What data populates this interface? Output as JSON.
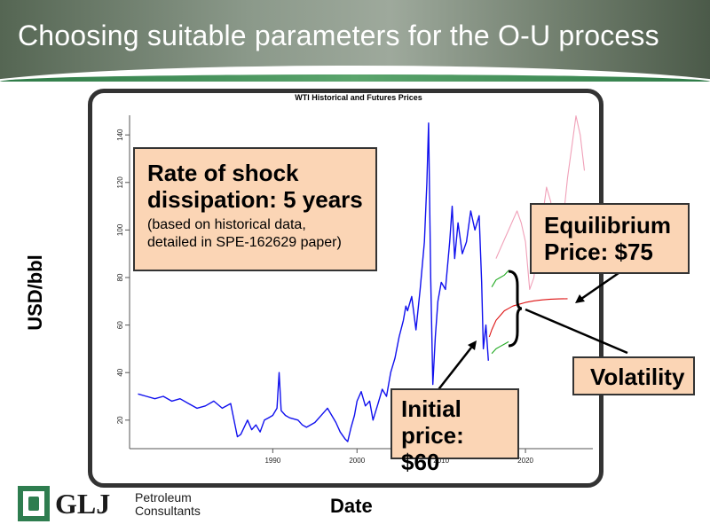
{
  "slide": {
    "title": "Choosing suitable parameters for the O-U process"
  },
  "chart_data": {
    "type": "line",
    "title": "WTI Historical and Futures Prices",
    "xlabel": "Date",
    "ylabel": "USD/bbl",
    "xlim": [
      1973,
      2028
    ],
    "ylim": [
      8,
      152
    ],
    "xticks": [
      1990,
      2000,
      2010,
      2020
    ],
    "yticks": [
      20,
      40,
      60,
      80,
      100,
      120,
      140
    ],
    "grid": false,
    "series": [
      {
        "color": "#1010ee",
        "x": [
          1974.0,
          1975.0,
          1976.0,
          1977.0,
          1978.0,
          1979.0,
          1980.0,
          1981.0,
          1982.0,
          1983.0,
          1984.0,
          1985.0,
          1985.8,
          1986.2,
          1986.6,
          1987.0,
          1987.5,
          1988.0,
          1988.5,
          1989.0,
          1989.5,
          1990.0,
          1990.5,
          1990.75,
          1991.0,
          1991.5,
          1992.0,
          1993.0,
          1993.5,
          1994.0,
          1995.0,
          1996.0,
          1996.5,
          1997.0,
          1997.5,
          1998.0,
          1998.6,
          1998.9,
          1999.3,
          1999.7,
          2000.0,
          2000.5,
          2001.0,
          2001.5,
          2001.9,
          2002.5,
          2003.0,
          2003.5,
          2004.0,
          2004.5,
          2005.0,
          2005.5,
          2005.8,
          2006.0,
          2006.5,
          2007.0,
          2007.5,
          2008.0,
          2008.3,
          2008.5,
          2008.75,
          2009.0,
          2009.3,
          2009.6,
          2010.0,
          2010.5,
          2011.0,
          2011.3,
          2011.6,
          2012.0,
          2012.5,
          2013.0,
          2013.5,
          2014.0,
          2014.5,
          2014.8,
          2015.0,
          2015.3,
          2015.6
        ],
        "y": [
          31,
          30,
          29,
          30,
          28,
          29,
          27,
          25,
          26,
          28,
          25,
          27,
          13,
          14,
          17,
          20,
          16,
          18,
          15,
          20,
          21,
          22,
          25,
          40,
          24,
          22,
          21,
          20,
          18,
          17,
          19,
          23,
          25,
          22,
          19,
          15,
          12,
          11,
          17,
          22,
          28,
          32,
          26,
          28,
          20,
          27,
          33,
          30,
          40,
          46,
          55,
          62,
          68,
          66,
          72,
          58,
          75,
          95,
          120,
          145,
          80,
          35,
          55,
          70,
          78,
          75,
          95,
          110,
          88,
          103,
          90,
          95,
          108,
          100,
          106,
          78,
          50,
          60,
          45
        ]
      },
      {
        "color": "#dd1111",
        "x": [
          2015.7,
          2016.0,
          2016.5,
          2017.0,
          2017.5,
          2018.0,
          2018.5,
          2019.0,
          2020.0,
          2021.0,
          2022.0,
          2023.0,
          2024.0,
          2025.0
        ],
        "y": [
          55,
          58,
          62,
          64,
          66,
          67,
          68,
          68.5,
          69.5,
          70.2,
          70.6,
          70.9,
          71.0,
          71.1
        ]
      },
      {
        "color": "#22aa22",
        "x": [
          2016.0,
          2016.5,
          2017.0,
          2017.5,
          2018.0
        ],
        "y": [
          76,
          79,
          80,
          81,
          83
        ]
      },
      {
        "color": "#22aa22",
        "x": [
          2016.0,
          2016.5,
          2017.0,
          2017.5,
          2018.0
        ],
        "y": [
          48,
          50,
          51,
          52,
          53
        ]
      },
      {
        "color": "#f0a0b8",
        "x": [
          2016.5,
          2017.0,
          2017.5,
          2018.0,
          2018.5,
          2019.0,
          2019.5,
          2020.0,
          2020.5,
          2021.0,
          2021.5,
          2022.0,
          2022.5,
          2023.0,
          2023.5,
          2024.0,
          2024.5,
          2025.0,
          2025.5,
          2026.0,
          2026.5,
          2027.0
        ],
        "y": [
          88,
          92,
          96,
          100,
          104,
          108,
          103,
          95,
          75,
          80,
          97,
          105,
          118,
          112,
          98,
          92,
          105,
          122,
          135,
          148,
          140,
          125
        ]
      }
    ]
  },
  "callouts": {
    "shock": {
      "line1": "Rate of shock",
      "line2": "dissipation: 5 years",
      "line3": "(based on historical data,",
      "line4": "detailed in SPE-162629 paper)"
    },
    "equilibrium": {
      "line1": "Equilibrium",
      "line2": "Price: $75"
    },
    "volatility": {
      "line1": "Volatility"
    },
    "initial": {
      "line1": "Initial",
      "line2": "price: $60"
    }
  },
  "logo": {
    "main": "GLJ",
    "sub1": "Petroleum",
    "sub2": "Consultants",
    "icon": "glj-logo-icon"
  }
}
